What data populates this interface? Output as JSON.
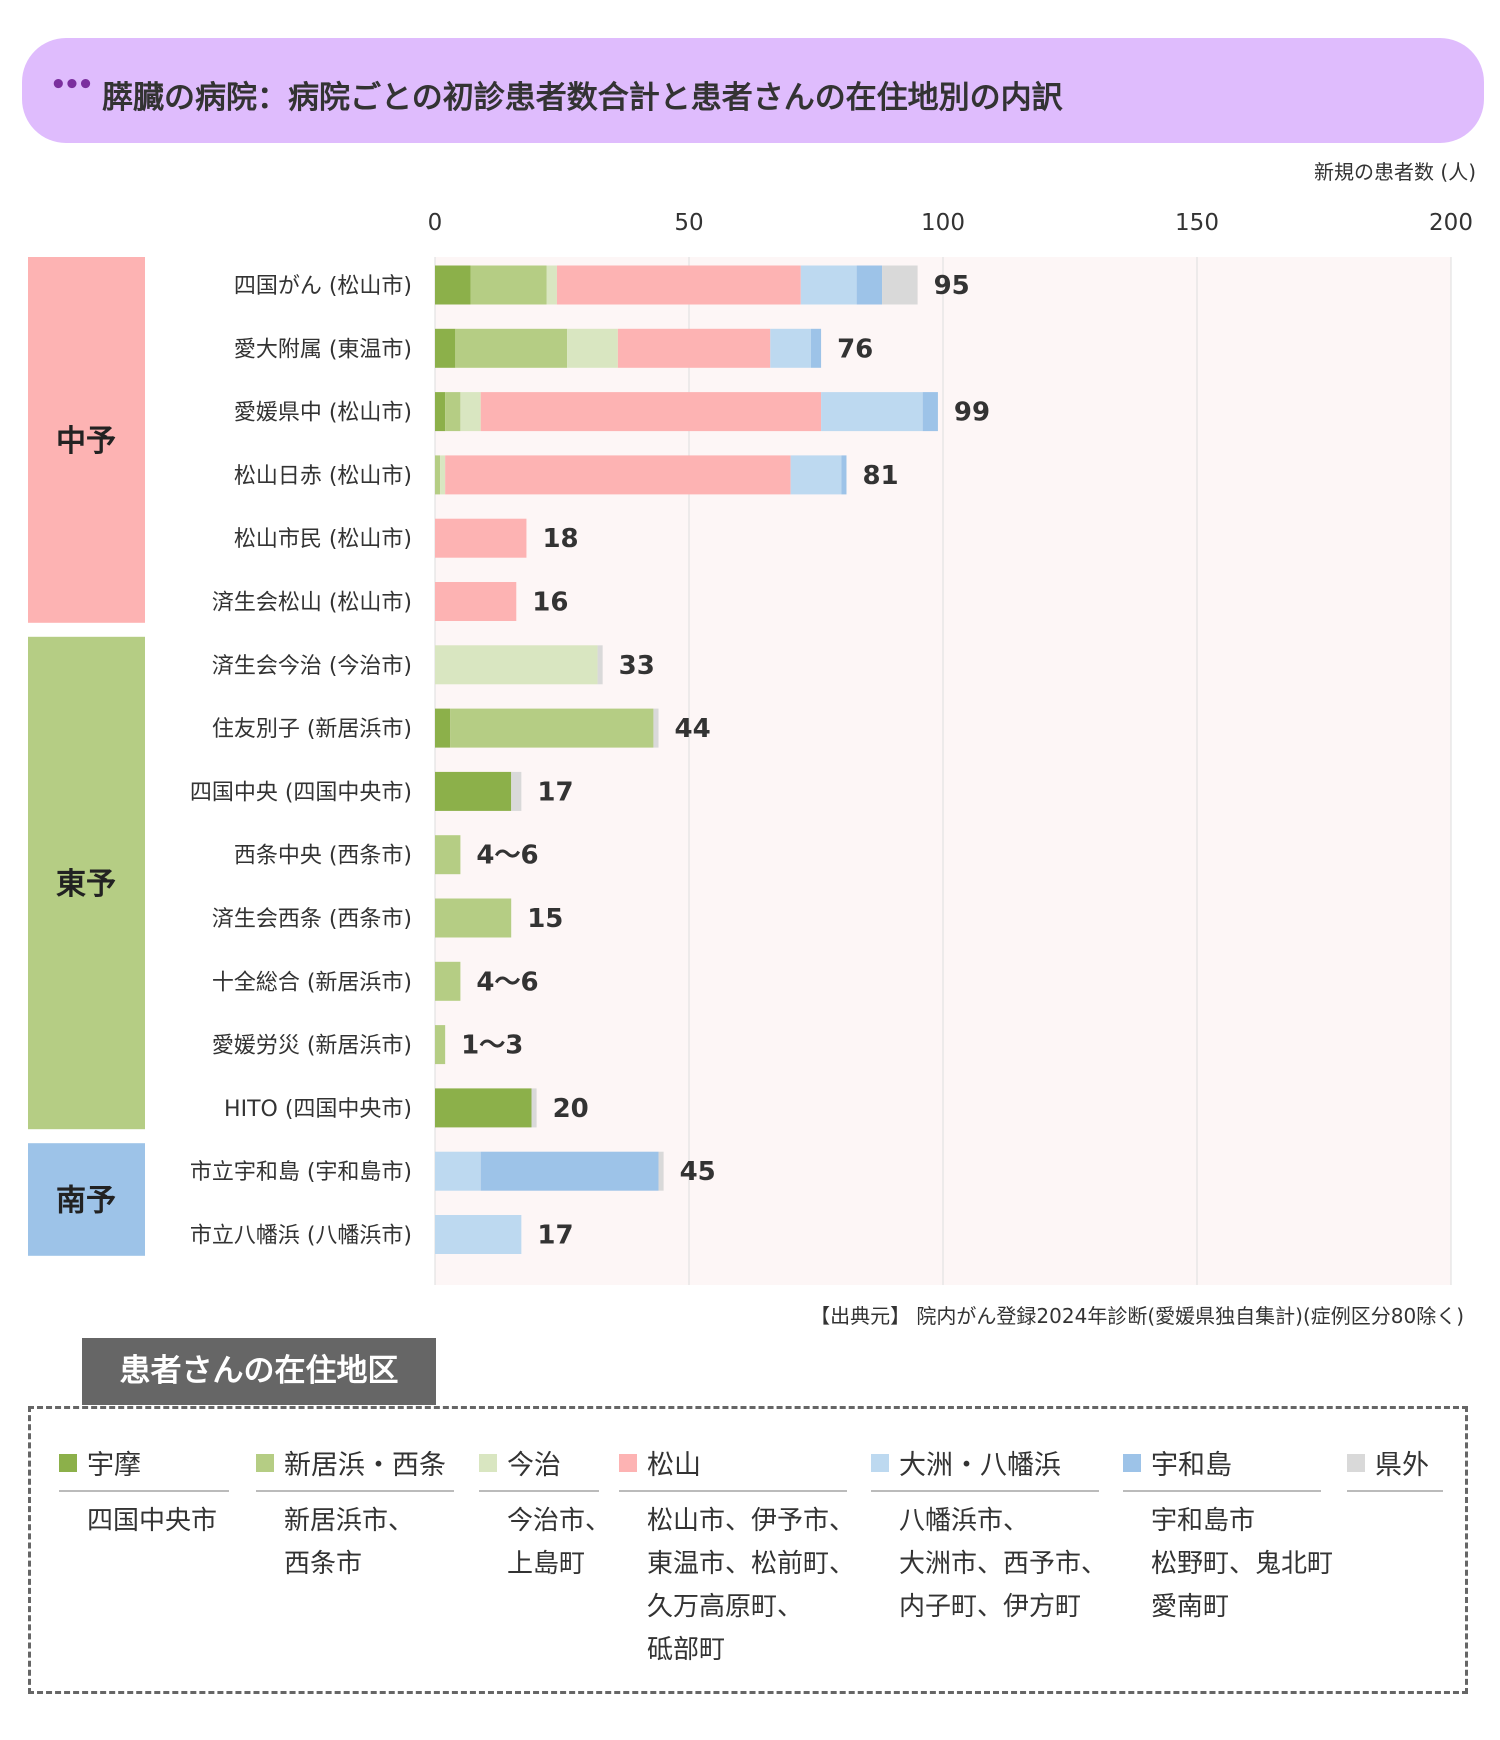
{
  "header": {
    "dots": "•••",
    "title": "膵臓の病院：病院ごとの初診患者数合計と患者さんの在住地別の内訳"
  },
  "unit_label": "新規の患者数 (人)",
  "source": "【出典元】 院内がん登録2024年診断(愛媛県独自集計)(症例区分80除く)",
  "colors": {
    "uwa": "#8cb04a",
    "niihama": "#b5cd84",
    "imabari": "#d9e6c1",
    "matsuyama": "#fdb3b3",
    "ozu": "#bdd9f0",
    "uwajima": "#9dc3e8",
    "outside": "#d9d9d9",
    "chuyo": "#fdb3b3",
    "toyo": "#b5cd84",
    "nanyo": "#9dc3e8",
    "plot_bg": "#fdf6f6",
    "grid": "#dddddd"
  },
  "chart_data": {
    "type": "bar",
    "orientation": "horizontal",
    "stacked": true,
    "xlim": [
      0,
      200
    ],
    "xticks": [
      "0",
      "50",
      "100",
      "150",
      "200"
    ],
    "xlabel": "新規の患者数 (人)",
    "categories": [
      "四国がん (松山市)",
      "愛大附属 (東温市)",
      "愛媛県中 (松山市)",
      "松山日赤 (松山市)",
      "松山市民 (松山市)",
      "済生会松山 (松山市)",
      "済生会今治 (今治市)",
      "住友別子 (新居浜市)",
      "四国中央 (四国中央市)",
      "西条中央 (西条市)",
      "済生会西条 (西条市)",
      "十全総合 (新居浜市)",
      "愛媛労災 (新居浜市)",
      "HITO (四国中央市)",
      "市立宇和島 (宇和島市)",
      "市立八幡浜 (八幡浜市)"
    ],
    "totals": [
      "95",
      "76",
      "99",
      "81",
      "18",
      "16",
      "33",
      "44",
      "17",
      "4～6",
      "15",
      "4～6",
      "1～3",
      "20",
      "45",
      "17"
    ],
    "series": [
      {
        "name": "宇摩",
        "color": "#8cb04a",
        "values": [
          7,
          4,
          2,
          0,
          0,
          0,
          0,
          3,
          15,
          0,
          0,
          0,
          0,
          19,
          0,
          0
        ]
      },
      {
        "name": "新居浜・西条",
        "color": "#b5cd84",
        "values": [
          15,
          22,
          3,
          1,
          0,
          0,
          0,
          40,
          0,
          5,
          15,
          5,
          2,
          0,
          0,
          0
        ]
      },
      {
        "name": "今治",
        "color": "#d9e6c1",
        "values": [
          2,
          10,
          4,
          1,
          0,
          0,
          32,
          0,
          0,
          0,
          0,
          0,
          0,
          0,
          0,
          0
        ]
      },
      {
        "name": "松山",
        "color": "#fdb3b3",
        "values": [
          48,
          30,
          67,
          68,
          18,
          16,
          0,
          0,
          0,
          0,
          0,
          0,
          0,
          0,
          0,
          0
        ]
      },
      {
        "name": "大洲・八幡浜",
        "color": "#bdd9f0",
        "values": [
          11,
          8,
          20,
          10,
          0,
          0,
          0,
          0,
          0,
          0,
          0,
          0,
          0,
          0,
          9,
          17
        ]
      },
      {
        "name": "宇和島",
        "color": "#9dc3e8",
        "values": [
          5,
          2,
          3,
          1,
          0,
          0,
          0,
          0,
          0,
          0,
          0,
          0,
          0,
          0,
          35,
          0
        ]
      },
      {
        "name": "県外",
        "color": "#d9d9d9",
        "values": [
          7,
          0,
          0,
          0,
          0,
          0,
          1,
          1,
          2,
          0,
          0,
          0,
          0,
          1,
          1,
          0
        ]
      }
    ],
    "groups": [
      {
        "label": "中予",
        "start": 0,
        "end": 5,
        "color": "#fdb3b3"
      },
      {
        "label": "東予",
        "start": 6,
        "end": 13,
        "color": "#b5cd84"
      },
      {
        "label": "南予",
        "start": 14,
        "end": 15,
        "color": "#9dc3e8"
      }
    ]
  },
  "legend": {
    "tab_title": "患者さんの在住地区",
    "items": [
      {
        "name": "宇摩",
        "color": "#8cb04a",
        "lines": [
          "四国中央市"
        ]
      },
      {
        "name": "新居浜・西条",
        "color": "#b5cd84",
        "lines": [
          "新居浜市、",
          "西条市"
        ]
      },
      {
        "name": "今治",
        "color": "#d9e6c1",
        "lines": [
          "今治市、",
          "上島町"
        ]
      },
      {
        "name": "松山",
        "color": "#fdb3b3",
        "lines": [
          "松山市、伊予市、",
          "東温市、松前町、",
          "久万高原町、",
          "砥部町"
        ]
      },
      {
        "name": "大洲・八幡浜",
        "color": "#bdd9f0",
        "lines": [
          "八幡浜市、",
          "大洲市、西予市、",
          "内子町、伊方町"
        ]
      },
      {
        "name": "宇和島",
        "color": "#9dc3e8",
        "lines": [
          "宇和島市",
          "松野町、鬼北町",
          "愛南町"
        ]
      },
      {
        "name": "県外",
        "color": "#d9d9d9",
        "lines": []
      }
    ]
  }
}
